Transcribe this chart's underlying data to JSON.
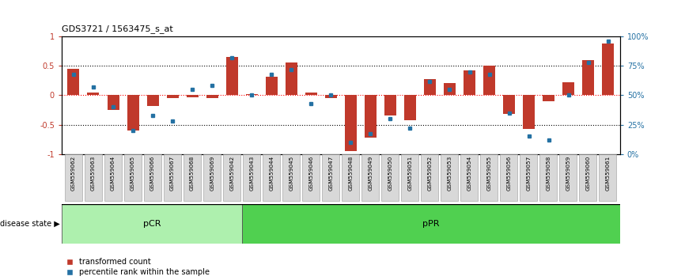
{
  "title": "GDS3721 / 1563475_s_at",
  "samples": [
    "GSM559062",
    "GSM559063",
    "GSM559064",
    "GSM559065",
    "GSM559066",
    "GSM559067",
    "GSM559068",
    "GSM559069",
    "GSM559042",
    "GSM559043",
    "GSM559044",
    "GSM559045",
    "GSM559046",
    "GSM559047",
    "GSM559048",
    "GSM559049",
    "GSM559050",
    "GSM559051",
    "GSM559052",
    "GSM559053",
    "GSM559054",
    "GSM559055",
    "GSM559056",
    "GSM559057",
    "GSM559058",
    "GSM559059",
    "GSM559060",
    "GSM559061"
  ],
  "transformed_count": [
    0.45,
    0.05,
    -0.25,
    -0.6,
    -0.18,
    -0.05,
    -0.03,
    -0.05,
    0.65,
    0.02,
    0.32,
    0.55,
    0.05,
    -0.05,
    -0.95,
    -0.72,
    -0.35,
    -0.42,
    0.28,
    0.2,
    0.42,
    0.5,
    -0.32,
    -0.57,
    -0.1,
    0.22,
    0.6,
    0.88
  ],
  "percentile_rank": [
    68,
    57,
    40,
    20,
    33,
    28,
    55,
    58,
    82,
    50,
    68,
    72,
    43,
    50,
    10,
    17,
    30,
    22,
    62,
    55,
    70,
    68,
    35,
    15,
    12,
    50,
    78,
    96
  ],
  "pCR_count": 9,
  "pPR_count": 19,
  "bar_color": "#c0392b",
  "dot_color": "#2471a3",
  "pCR_color": "#aef0ae",
  "pPR_color": "#50d050",
  "ylim": [
    -1,
    1
  ],
  "dotted_lines": [
    0.5,
    -0.5
  ],
  "zero_line": 0.0
}
